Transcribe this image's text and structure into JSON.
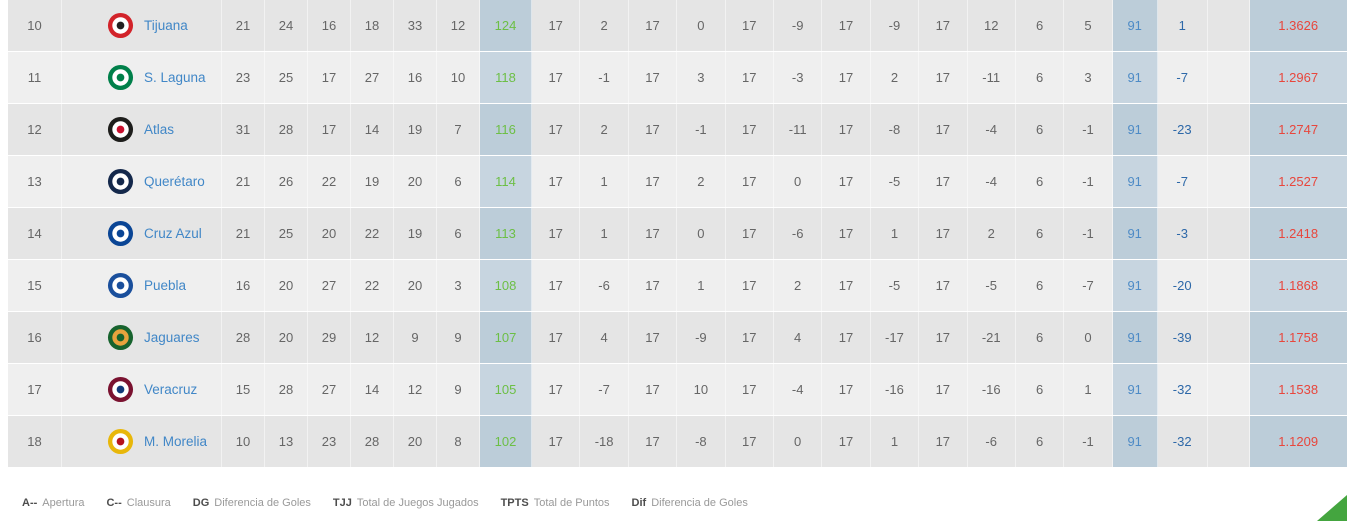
{
  "colors": {
    "rowDark": "#e5e5e5",
    "rowLight": "#efefef",
    "hlDark": "#bccdd9",
    "hlLight": "#c7d5e0",
    "green": "#6cbf45",
    "tjjBlue": "#4e8bc6",
    "difBlue": "#2d68a8",
    "red": "#e8463c",
    "link": "#4187c7",
    "cornerGreen": "#44a53f"
  },
  "table": {
    "rows": [
      {
        "rank": "10",
        "team": "Tijuana",
        "logo": {
          "outer": "#d2232a",
          "inner": "#ffffff",
          "detail": "#231f20"
        },
        "values": [
          "21",
          "24",
          "16",
          "18",
          "33",
          "12",
          "124",
          "17",
          "2",
          "17",
          "0",
          "17",
          "-9",
          "17",
          "-9",
          "17",
          "12",
          "6",
          "5",
          "91",
          "1",
          "1.3626"
        ]
      },
      {
        "rank": "11",
        "team": "S. Laguna",
        "logo": {
          "outer": "#00804a",
          "inner": "#ffffff",
          "detail": "#00804a"
        },
        "values": [
          "23",
          "25",
          "17",
          "27",
          "16",
          "10",
          "118",
          "17",
          "-1",
          "17",
          "3",
          "17",
          "-3",
          "17",
          "2",
          "17",
          "-11",
          "6",
          "3",
          "91",
          "-7",
          "1.2967"
        ]
      },
      {
        "rank": "12",
        "team": "Atlas",
        "logo": {
          "outer": "#1d1d1b",
          "inner": "#ffffff",
          "detail": "#c8102e"
        },
        "values": [
          "31",
          "28",
          "17",
          "14",
          "19",
          "7",
          "116",
          "17",
          "2",
          "17",
          "-1",
          "17",
          "-11",
          "17",
          "-8",
          "17",
          "-4",
          "6",
          "-1",
          "91",
          "-23",
          "1.2747"
        ]
      },
      {
        "rank": "13",
        "team": "Querétaro",
        "logo": {
          "outer": "#14284b",
          "inner": "#ffffff",
          "detail": "#14284b"
        },
        "values": [
          "21",
          "26",
          "22",
          "19",
          "20",
          "6",
          "114",
          "17",
          "1",
          "17",
          "2",
          "17",
          "0",
          "17",
          "-5",
          "17",
          "-4",
          "6",
          "-1",
          "91",
          "-7",
          "1.2527"
        ]
      },
      {
        "rank": "14",
        "team": "Cruz Azul",
        "logo": {
          "outer": "#0a4595",
          "inner": "#ffffff",
          "detail": "#0a4595"
        },
        "values": [
          "21",
          "25",
          "20",
          "22",
          "19",
          "6",
          "113",
          "17",
          "1",
          "17",
          "0",
          "17",
          "-6",
          "17",
          "1",
          "17",
          "2",
          "6",
          "-1",
          "91",
          "-3",
          "1.2418"
        ]
      },
      {
        "rank": "15",
        "team": "Puebla",
        "logo": {
          "outer": "#1a4f9c",
          "inner": "#ffffff",
          "detail": "#1a4f9c"
        },
        "values": [
          "16",
          "20",
          "27",
          "22",
          "20",
          "3",
          "108",
          "17",
          "-6",
          "17",
          "1",
          "17",
          "2",
          "17",
          "-5",
          "17",
          "-5",
          "6",
          "-7",
          "91",
          "-20",
          "1.1868"
        ]
      },
      {
        "rank": "16",
        "team": "Jaguares",
        "logo": {
          "outer": "#17632e",
          "inner": "#e8a33d",
          "detail": "#17632e"
        },
        "values": [
          "28",
          "20",
          "29",
          "12",
          "9",
          "9",
          "107",
          "17",
          "4",
          "17",
          "-9",
          "17",
          "4",
          "17",
          "-17",
          "17",
          "-21",
          "6",
          "0",
          "91",
          "-39",
          "1.1758"
        ]
      },
      {
        "rank": "17",
        "team": "Veracruz",
        "logo": {
          "outer": "#7a1230",
          "inner": "#ffffff",
          "detail": "#123a7a"
        },
        "values": [
          "15",
          "28",
          "27",
          "14",
          "12",
          "9",
          "105",
          "17",
          "-7",
          "17",
          "10",
          "17",
          "-4",
          "17",
          "-16",
          "17",
          "-16",
          "6",
          "1",
          "91",
          "-32",
          "1.1538"
        ]
      },
      {
        "rank": "18",
        "team": "M. Morelia",
        "logo": {
          "outer": "#e8b70a",
          "inner": "#ffffff",
          "detail": "#b5121b"
        },
        "values": [
          "10",
          "13",
          "23",
          "28",
          "20",
          "8",
          "102",
          "17",
          "-18",
          "17",
          "-8",
          "17",
          "0",
          "17",
          "1",
          "17",
          "-6",
          "6",
          "-1",
          "91",
          "-32",
          "1.1209"
        ]
      }
    ]
  },
  "legend": {
    "items": [
      {
        "abbr": "A--",
        "label": "Apertura"
      },
      {
        "abbr": "C--",
        "label": "Clausura"
      },
      {
        "abbr": "DG",
        "label": "Diferencia de Goles"
      },
      {
        "abbr": "TJJ",
        "label": "Total de Juegos Jugados"
      },
      {
        "abbr": "TPTS",
        "label": "Total de Puntos"
      },
      {
        "abbr": "Dif",
        "label": "Diferencia de Goles"
      }
    ]
  }
}
